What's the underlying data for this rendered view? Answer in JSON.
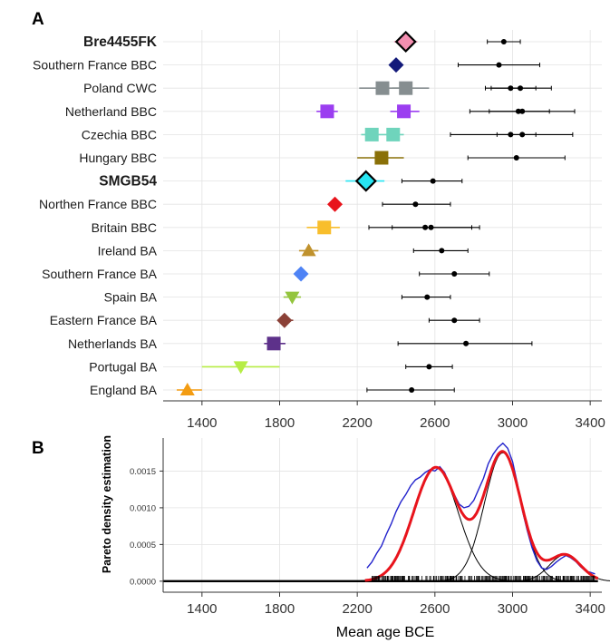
{
  "figure": {
    "panel_a_letter": "A",
    "panel_b_letter": "B",
    "panel_b_ylabel": "Pareto density estimation",
    "panel_b_xlabel": "Mean age BCE"
  },
  "colors": {
    "grid": "#e3e3e3",
    "axis": "#333333",
    "density_observed": "#2222cc",
    "density_fit": "#e8141c",
    "components": "#000000",
    "rug": "#000000"
  },
  "chart_data": [
    {
      "panel": "A",
      "type": "scatter",
      "title": "",
      "xlabel": "",
      "ylabel": "",
      "xlim": [
        1200,
        3460
      ],
      "x_ticks": [
        1400,
        1800,
        2200,
        2600,
        3000,
        3400
      ],
      "x_tick_labels": [
        "1400",
        "1800",
        "2200",
        "2600",
        "3000",
        "3400"
      ],
      "grid": true,
      "rows": [
        {
          "label": "Bre4455FK",
          "bold": true,
          "markers": [
            {
              "shape": "diamond",
              "color": "#f48fb1",
              "x": 2450,
              "lo": 2390,
              "hi": 2510
            }
          ],
          "points": [
            {
              "x": 2955,
              "lo": 2870,
              "hi": 3040
            }
          ]
        },
        {
          "label": "Southern France BBC",
          "bold": false,
          "markers": [
            {
              "shape": "diamond",
              "color": "#131a7a",
              "x": 2400,
              "lo": 2370,
              "hi": 2430
            }
          ],
          "points": [
            {
              "x": 2930,
              "lo": 2720,
              "hi": 3140
            }
          ]
        },
        {
          "label": "Poland CWC",
          "bold": false,
          "markers": [
            {
              "shape": "square",
              "color": "#868e90",
              "x": 2330,
              "lo": 2210,
              "hi": 2420
            },
            {
              "shape": "square",
              "color": "#868e90",
              "x": 2450,
              "lo": 2380,
              "hi": 2570
            }
          ],
          "points": [
            {
              "x": 2990,
              "lo": 2860,
              "hi": 3120
            },
            {
              "x": 3040,
              "lo": 2890,
              "hi": 3200
            }
          ]
        },
        {
          "label": "Netherland BBC",
          "bold": false,
          "markers": [
            {
              "shape": "square",
              "color": "#9b3ef0",
              "x": 2045,
              "lo": 1990,
              "hi": 2100
            },
            {
              "shape": "square",
              "color": "#9b3ef0",
              "x": 2440,
              "lo": 2370,
              "hi": 2520
            }
          ],
          "points": [
            {
              "x": 3030,
              "lo": 2780,
              "hi": 3320
            },
            {
              "x": 3050,
              "lo": 2880,
              "hi": 3190
            }
          ]
        },
        {
          "label": "Czechia BBC",
          "bold": false,
          "markers": [
            {
              "shape": "square",
              "color": "#6fd4bc",
              "x": 2275,
              "lo": 2220,
              "hi": 2330
            },
            {
              "shape": "square",
              "color": "#6fd4bc",
              "x": 2385,
              "lo": 2330,
              "hi": 2440
            }
          ],
          "points": [
            {
              "x": 2990,
              "lo": 2680,
              "hi": 3310
            },
            {
              "x": 3050,
              "lo": 2920,
              "hi": 3120
            }
          ]
        },
        {
          "label": "Hungary BBC",
          "bold": false,
          "markers": [
            {
              "shape": "square",
              "color": "#8a7008",
              "x": 2325,
              "lo": 2200,
              "hi": 2440
            }
          ],
          "points": [
            {
              "x": 3020,
              "lo": 2770,
              "hi": 3270
            }
          ]
        },
        {
          "label": "SMGB54",
          "bold": true,
          "markers": [
            {
              "shape": "diamond",
              "color": "#27e5f2",
              "x": 2245,
              "lo": 2140,
              "hi": 2340
            }
          ],
          "points": [
            {
              "x": 2590,
              "lo": 2430,
              "hi": 2740
            }
          ]
        },
        {
          "label": "Northen France BBC",
          "bold": false,
          "markers": [
            {
              "shape": "diamond",
              "color": "#e8141c",
              "x": 2085,
              "lo": 2055,
              "hi": 2115
            }
          ],
          "points": [
            {
              "x": 2500,
              "lo": 2330,
              "hi": 2680
            }
          ]
        },
        {
          "label": "Britain BBC",
          "bold": false,
          "markers": [
            {
              "shape": "square",
              "color": "#f8be2c",
              "x": 2030,
              "lo": 1940,
              "hi": 2110
            }
          ],
          "points": [
            {
              "x": 2550,
              "lo": 2260,
              "hi": 2830
            },
            {
              "x": 2580,
              "lo": 2380,
              "hi": 2790
            }
          ]
        },
        {
          "label": "Ireland BA",
          "bold": false,
          "markers": [
            {
              "shape": "triangle-up",
              "color": "#c0922d",
              "x": 1950,
              "lo": 1900,
              "hi": 2000
            }
          ],
          "points": [
            {
              "x": 2635,
              "lo": 2490,
              "hi": 2770
            }
          ]
        },
        {
          "label": "Southern France BA",
          "bold": false,
          "markers": [
            {
              "shape": "diamond",
              "color": "#4e83f5",
              "x": 1910,
              "lo": 1890,
              "hi": 1930
            }
          ],
          "points": [
            {
              "x": 2700,
              "lo": 2520,
              "hi": 2880
            }
          ]
        },
        {
          "label": "Spain BA",
          "bold": false,
          "markers": [
            {
              "shape": "triangle-down",
              "color": "#94c53e",
              "x": 1865,
              "lo": 1820,
              "hi": 1910
            }
          ],
          "points": [
            {
              "x": 2560,
              "lo": 2430,
              "hi": 2680
            }
          ]
        },
        {
          "label": "Eastern France BA",
          "bold": false,
          "markers": [
            {
              "shape": "diamond",
              "color": "#8b4137",
              "x": 1825,
              "lo": 1790,
              "hi": 1870
            }
          ],
          "points": [
            {
              "x": 2700,
              "lo": 2570,
              "hi": 2830
            }
          ]
        },
        {
          "label": "Netherlands BA",
          "bold": false,
          "markers": [
            {
              "shape": "square",
              "color": "#5d318a",
              "x": 1770,
              "lo": 1720,
              "hi": 1830
            }
          ],
          "points": [
            {
              "x": 2760,
              "lo": 2410,
              "hi": 3100
            }
          ]
        },
        {
          "label": "Portugal BA",
          "bold": false,
          "markers": [
            {
              "shape": "triangle-down",
              "color": "#b6ed45",
              "x": 1600,
              "lo": 1400,
              "hi": 1800
            }
          ],
          "points": [
            {
              "x": 2570,
              "lo": 2450,
              "hi": 2690
            }
          ]
        },
        {
          "label": "England BA",
          "bold": false,
          "markers": [
            {
              "shape": "triangle-up",
              "color": "#f39c12",
              "x": 1325,
              "lo": 1270,
              "hi": 1400
            }
          ],
          "points": [
            {
              "x": 2480,
              "lo": 2250,
              "hi": 2700
            }
          ]
        }
      ]
    },
    {
      "panel": "B",
      "type": "line",
      "title": "",
      "xlabel": "Mean age BCE",
      "ylabel": "Pareto density estimation",
      "xlim": [
        1200,
        3460
      ],
      "ylim": [
        -0.00015,
        0.00195
      ],
      "x_ticks": [
        1400,
        1800,
        2200,
        2600,
        3000,
        3400
      ],
      "x_tick_labels": [
        "1400",
        "1800",
        "2200",
        "2600",
        "3000",
        "3400"
      ],
      "y_ticks": [
        0,
        0.0005,
        0.001,
        0.0015
      ],
      "y_tick_labels": [
        "0.0000",
        "0.0005",
        "0.0010",
        "0.0015"
      ],
      "grid": true,
      "components": [
        {
          "mu": 2605,
          "sigma": 115,
          "peak": 0.00155
        },
        {
          "mu": 2950,
          "sigma": 95,
          "peak": 0.00175
        },
        {
          "mu": 3270,
          "sigma": 80,
          "peak": 0.00036
        }
      ],
      "observed": [
        [
          2250,
          0.00018
        ],
        [
          2275,
          0.00026
        ],
        [
          2300,
          0.00038
        ],
        [
          2325,
          0.00048
        ],
        [
          2350,
          0.00064
        ],
        [
          2375,
          0.00078
        ],
        [
          2400,
          0.00095
        ],
        [
          2425,
          0.00108
        ],
        [
          2450,
          0.00118
        ],
        [
          2475,
          0.0013
        ],
        [
          2500,
          0.00138
        ],
        [
          2525,
          0.00142
        ],
        [
          2550,
          0.00148
        ],
        [
          2575,
          0.00152
        ],
        [
          2600,
          0.0015
        ],
        [
          2625,
          0.00156
        ],
        [
          2650,
          0.00148
        ],
        [
          2675,
          0.00132
        ],
        [
          2700,
          0.00118
        ],
        [
          2725,
          0.00105
        ],
        [
          2750,
          0.001
        ],
        [
          2775,
          0.00102
        ],
        [
          2800,
          0.0011
        ],
        [
          2825,
          0.00125
        ],
        [
          2850,
          0.0014
        ],
        [
          2875,
          0.0016
        ],
        [
          2900,
          0.00173
        ],
        [
          2925,
          0.00182
        ],
        [
          2950,
          0.00188
        ],
        [
          2975,
          0.00181
        ],
        [
          3000,
          0.00163
        ],
        [
          3025,
          0.00133
        ],
        [
          3050,
          0.00097
        ],
        [
          3075,
          0.0007
        ],
        [
          3100,
          0.00046
        ],
        [
          3125,
          0.00028
        ],
        [
          3150,
          0.00018
        ],
        [
          3175,
          0.00016
        ],
        [
          3200,
          0.0002
        ],
        [
          3225,
          0.00026
        ],
        [
          3250,
          0.00031
        ],
        [
          3275,
          0.00035
        ],
        [
          3300,
          0.00032
        ],
        [
          3325,
          0.00027
        ],
        [
          3350,
          0.0002
        ],
        [
          3375,
          0.00014
        ],
        [
          3400,
          0.00012
        ],
        [
          3425,
          0.0001
        ]
      ],
      "fit_range": [
        2240,
        3440
      ],
      "zero_line_range": [
        1200,
        3440
      ],
      "rug_range": [
        2270,
        3430
      ]
    }
  ]
}
